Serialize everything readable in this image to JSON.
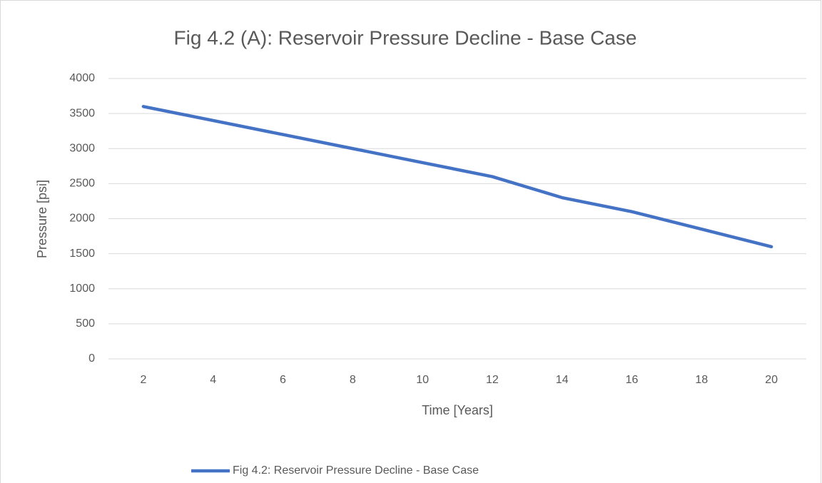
{
  "chart_data": {
    "type": "line",
    "title": "Fig 4.2 (A): Reservoir Pressure Decline - Base Case",
    "x_label": "Time [Years]",
    "y_label": "Pressure [psi]",
    "categories": [
      2,
      4,
      6,
      8,
      10,
      12,
      14,
      16,
      18,
      20
    ],
    "series": [
      {
        "name": "Fig 4.2: Reservoir Pressure Decline - Base Case",
        "color": "#4472c4",
        "values": [
          3600,
          3400,
          3200,
          3000,
          2800,
          2600,
          2300,
          2100,
          1850,
          1600
        ]
      }
    ],
    "ylim": [
      0,
      4000
    ],
    "yticks": [
      0,
      500,
      1000,
      1500,
      2000,
      2500,
      3000,
      3500,
      4000
    ],
    "grid": true,
    "legend": "bottom"
  }
}
